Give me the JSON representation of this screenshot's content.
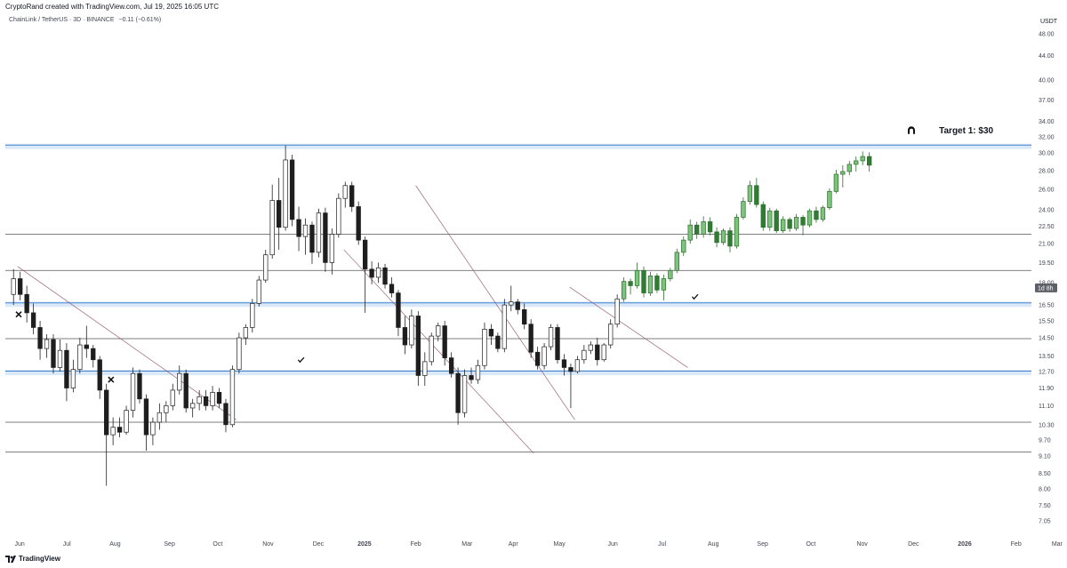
{
  "header": {
    "attribution": "CryptoRand created with TradingView.com, Jul 19, 2025 16:05 UTC",
    "symbol": "ChainLink / TetherUS · 3D · BINANCE",
    "change": "−0.11 (−0.61%)"
  },
  "footer": {
    "brand": "TradingView",
    "logo_icon": "tradingview-logo-icon"
  },
  "chart_data": {
    "type": "candlestick",
    "ylabel": "USDT",
    "yscale": "log",
    "ylim": [
      6.6,
      52
    ],
    "y_ticks": [
      "48.00",
      "44.00",
      "40.00",
      "37.00",
      "34.00",
      "32.00",
      "30.00",
      "28.00",
      "26.00",
      "24.00",
      "22.50",
      "21.00",
      "19.50",
      "18.00",
      "16.50",
      "15.50",
      "14.50",
      "13.50",
      "12.70",
      "11.90",
      "11.10",
      "10.30",
      "9.70",
      "9.10",
      "8.50",
      "8.00",
      "7.50",
      "7.05"
    ],
    "x_ticks": [
      "Jun",
      "Jul",
      "Aug",
      "Sep",
      "Oct",
      "Nov",
      "Dec",
      "2025",
      "Feb",
      "Mar",
      "Apr",
      "May",
      "Jun",
      "Jul",
      "Aug",
      "Sep",
      "Oct",
      "Nov",
      "Dec",
      "2026",
      "Feb",
      "Mar"
    ],
    "x_tick_pos": [
      0.014,
      0.06,
      0.107,
      0.16,
      0.207,
      0.256,
      0.305,
      0.35,
      0.4,
      0.45,
      0.495,
      0.54,
      0.592,
      0.64,
      0.69,
      0.738,
      0.785,
      0.835,
      0.885,
      0.935,
      0.985,
      1.025
    ],
    "price_label": "1d 8h",
    "last_price": 17.65,
    "horizontal_levels": [
      {
        "price": 30.8,
        "style": "blue-zone"
      },
      {
        "price": 16.55,
        "style": "blue-zone"
      },
      {
        "price": 12.65,
        "style": "blue-zone"
      },
      {
        "price": 21.8,
        "style": "line"
      },
      {
        "price": 18.9,
        "style": "line"
      },
      {
        "price": 14.45,
        "style": "line"
      },
      {
        "price": 10.4,
        "style": "line"
      },
      {
        "price": 9.25,
        "style": "line"
      }
    ],
    "trendlines": [
      {
        "x1": 0.012,
        "y1": 19.2,
        "x2": 0.225,
        "y2": 10.5
      },
      {
        "x1": 0.4,
        "y1": 26.4,
        "x2": 0.555,
        "y2": 10.5
      },
      {
        "x1": 0.33,
        "y1": 20.5,
        "x2": 0.515,
        "y2": 9.2
      },
      {
        "x1": 0.55,
        "y1": 17.7,
        "x2": 0.665,
        "y2": 12.9
      }
    ],
    "candles": [
      {
        "o": 17.2,
        "h": 19.0,
        "l": 16.5,
        "c": 18.3
      },
      {
        "o": 18.3,
        "h": 18.8,
        "l": 16.8,
        "c": 17.2
      },
      {
        "o": 17.2,
        "h": 17.8,
        "l": 15.4,
        "c": 16.0
      },
      {
        "o": 16.0,
        "h": 16.6,
        "l": 14.7,
        "c": 15.1
      },
      {
        "o": 15.1,
        "h": 15.5,
        "l": 13.3,
        "c": 13.9
      },
      {
        "o": 13.9,
        "h": 14.7,
        "l": 13.4,
        "c": 14.4
      },
      {
        "o": 14.4,
        "h": 14.7,
        "l": 12.6,
        "c": 12.9
      },
      {
        "o": 12.9,
        "h": 14.4,
        "l": 12.7,
        "c": 13.8
      },
      {
        "o": 13.8,
        "h": 14.2,
        "l": 11.3,
        "c": 11.9
      },
      {
        "o": 11.9,
        "h": 13.3,
        "l": 11.7,
        "c": 12.8
      },
      {
        "o": 12.8,
        "h": 14.5,
        "l": 12.6,
        "c": 14.1
      },
      {
        "o": 14.1,
        "h": 15.2,
        "l": 13.4,
        "c": 13.9
      },
      {
        "o": 13.9,
        "h": 14.1,
        "l": 12.9,
        "c": 13.3
      },
      {
        "o": 13.3,
        "h": 13.5,
        "l": 11.4,
        "c": 11.8
      },
      {
        "o": 11.8,
        "h": 12.1,
        "l": 8.1,
        "c": 9.9
      },
      {
        "o": 9.9,
        "h": 10.6,
        "l": 9.5,
        "c": 10.2
      },
      {
        "o": 10.2,
        "h": 10.6,
        "l": 9.8,
        "c": 10.0
      },
      {
        "o": 10.0,
        "h": 11.1,
        "l": 9.9,
        "c": 10.9
      },
      {
        "o": 10.9,
        "h": 12.9,
        "l": 10.6,
        "c": 12.6
      },
      {
        "o": 12.6,
        "h": 12.8,
        "l": 11.2,
        "c": 11.4
      },
      {
        "o": 11.4,
        "h": 11.6,
        "l": 9.3,
        "c": 9.9
      },
      {
        "o": 9.9,
        "h": 10.6,
        "l": 9.5,
        "c": 10.4
      },
      {
        "o": 10.4,
        "h": 11.2,
        "l": 10.1,
        "c": 10.8
      },
      {
        "o": 10.8,
        "h": 11.3,
        "l": 10.4,
        "c": 11.1
      },
      {
        "o": 11.1,
        "h": 12.1,
        "l": 10.9,
        "c": 11.8
      },
      {
        "o": 11.8,
        "h": 13.0,
        "l": 11.6,
        "c": 12.6
      },
      {
        "o": 12.6,
        "h": 12.8,
        "l": 10.8,
        "c": 11.0
      },
      {
        "o": 11.0,
        "h": 11.4,
        "l": 10.6,
        "c": 11.2
      },
      {
        "o": 11.2,
        "h": 11.8,
        "l": 10.9,
        "c": 11.5
      },
      {
        "o": 11.5,
        "h": 11.8,
        "l": 10.9,
        "c": 11.1
      },
      {
        "o": 11.1,
        "h": 12.0,
        "l": 10.9,
        "c": 11.7
      },
      {
        "o": 11.7,
        "h": 11.9,
        "l": 11.0,
        "c": 11.2
      },
      {
        "o": 11.2,
        "h": 11.4,
        "l": 10.0,
        "c": 10.3
      },
      {
        "o": 10.3,
        "h": 13.0,
        "l": 10.2,
        "c": 12.8
      },
      {
        "o": 12.8,
        "h": 14.8,
        "l": 12.6,
        "c": 14.5
      },
      {
        "o": 14.5,
        "h": 15.3,
        "l": 14.1,
        "c": 15.1
      },
      {
        "o": 15.1,
        "h": 16.9,
        "l": 14.8,
        "c": 16.6
      },
      {
        "o": 16.6,
        "h": 18.5,
        "l": 16.4,
        "c": 18.2
      },
      {
        "o": 18.2,
        "h": 20.5,
        "l": 18.0,
        "c": 20.1
      },
      {
        "o": 20.1,
        "h": 26.5,
        "l": 19.8,
        "c": 24.9
      },
      {
        "o": 24.9,
        "h": 27.2,
        "l": 20.5,
        "c": 22.4
      },
      {
        "o": 22.4,
        "h": 30.9,
        "l": 22.1,
        "c": 29.2
      },
      {
        "o": 29.2,
        "h": 29.8,
        "l": 22.5,
        "c": 23.1
      },
      {
        "o": 23.1,
        "h": 24.3,
        "l": 20.4,
        "c": 21.6
      },
      {
        "o": 21.6,
        "h": 23.2,
        "l": 20.1,
        "c": 22.6
      },
      {
        "o": 22.6,
        "h": 22.9,
        "l": 19.4,
        "c": 20.3
      },
      {
        "o": 20.3,
        "h": 24.1,
        "l": 19.9,
        "c": 23.7
      },
      {
        "o": 23.7,
        "h": 24.2,
        "l": 18.8,
        "c": 19.5
      },
      {
        "o": 19.5,
        "h": 22.3,
        "l": 18.6,
        "c": 21.8
      },
      {
        "o": 21.8,
        "h": 25.6,
        "l": 21.5,
        "c": 25.1
      },
      {
        "o": 25.1,
        "h": 26.8,
        "l": 24.2,
        "c": 26.4
      },
      {
        "o": 26.4,
        "h": 26.8,
        "l": 23.8,
        "c": 24.3
      },
      {
        "o": 24.3,
        "h": 24.8,
        "l": 20.9,
        "c": 21.3
      },
      {
        "o": 21.3,
        "h": 21.6,
        "l": 16.0,
        "c": 19.0
      },
      {
        "o": 19.0,
        "h": 19.6,
        "l": 17.9,
        "c": 18.4
      },
      {
        "o": 18.4,
        "h": 19.5,
        "l": 18.0,
        "c": 19.1
      },
      {
        "o": 19.1,
        "h": 19.4,
        "l": 17.6,
        "c": 17.9
      },
      {
        "o": 17.9,
        "h": 18.4,
        "l": 17.0,
        "c": 17.3
      },
      {
        "o": 17.3,
        "h": 17.5,
        "l": 14.6,
        "c": 15.1
      },
      {
        "o": 15.1,
        "h": 15.8,
        "l": 13.6,
        "c": 14.1
      },
      {
        "o": 14.1,
        "h": 16.2,
        "l": 13.9,
        "c": 15.8
      },
      {
        "o": 15.8,
        "h": 16.1,
        "l": 12.0,
        "c": 12.5
      },
      {
        "o": 12.5,
        "h": 13.7,
        "l": 12.0,
        "c": 13.2
      },
      {
        "o": 13.2,
        "h": 14.8,
        "l": 13.0,
        "c": 14.6
      },
      {
        "o": 14.6,
        "h": 15.4,
        "l": 14.3,
        "c": 15.2
      },
      {
        "o": 15.2,
        "h": 15.5,
        "l": 13.0,
        "c": 13.4
      },
      {
        "o": 13.4,
        "h": 13.7,
        "l": 12.4,
        "c": 12.6
      },
      {
        "o": 12.6,
        "h": 12.9,
        "l": 10.3,
        "c": 10.8
      },
      {
        "o": 10.8,
        "h": 12.8,
        "l": 10.6,
        "c": 12.5
      },
      {
        "o": 12.5,
        "h": 12.9,
        "l": 12.1,
        "c": 12.3
      },
      {
        "o": 12.3,
        "h": 13.3,
        "l": 12.1,
        "c": 13.0
      },
      {
        "o": 13.0,
        "h": 15.4,
        "l": 12.8,
        "c": 15.0
      },
      {
        "o": 15.0,
        "h": 15.3,
        "l": 14.1,
        "c": 14.6
      },
      {
        "o": 14.6,
        "h": 14.8,
        "l": 13.7,
        "c": 13.9
      },
      {
        "o": 13.9,
        "h": 16.9,
        "l": 13.7,
        "c": 16.5
      },
      {
        "o": 16.5,
        "h": 17.8,
        "l": 16.1,
        "c": 16.7
      },
      {
        "o": 16.7,
        "h": 16.9,
        "l": 15.9,
        "c": 16.2
      },
      {
        "o": 16.2,
        "h": 16.6,
        "l": 15.0,
        "c": 15.3
      },
      {
        "o": 15.3,
        "h": 15.6,
        "l": 13.4,
        "c": 13.7
      },
      {
        "o": 13.7,
        "h": 14.0,
        "l": 12.8,
        "c": 13.0
      },
      {
        "o": 13.0,
        "h": 14.2,
        "l": 12.8,
        "c": 14.0
      },
      {
        "o": 14.0,
        "h": 15.3,
        "l": 13.8,
        "c": 15.1
      },
      {
        "o": 15.1,
        "h": 15.3,
        "l": 13.1,
        "c": 13.3
      },
      {
        "o": 13.3,
        "h": 13.6,
        "l": 12.5,
        "c": 12.9
      },
      {
        "o": 12.9,
        "h": 13.1,
        "l": 11.0,
        "c": 12.7
      },
      {
        "o": 12.7,
        "h": 13.5,
        "l": 12.6,
        "c": 13.3
      },
      {
        "o": 13.3,
        "h": 14.1,
        "l": 13.1,
        "c": 13.8
      },
      {
        "o": 13.8,
        "h": 14.3,
        "l": 13.6,
        "c": 14.1
      },
      {
        "o": 14.1,
        "h": 14.5,
        "l": 13.0,
        "c": 13.3
      },
      {
        "o": 13.3,
        "h": 14.2,
        "l": 13.2,
        "c": 14.1
      },
      {
        "o": 14.1,
        "h": 15.6,
        "l": 13.9,
        "c": 15.3
      },
      {
        "o": 15.3,
        "h": 17.2,
        "l": 15.1,
        "c": 16.9
      },
      {
        "o": 16.9,
        "h": 18.4,
        "l": 16.7,
        "c": 18.1
      },
      {
        "o": 18.1,
        "h": 18.3,
        "l": 17.2,
        "c": 17.8
      },
      {
        "o": 17.8,
        "h": 19.5,
        "l": 17.6,
        "c": 18.9
      },
      {
        "o": 18.9,
        "h": 19.2,
        "l": 17.0,
        "c": 17.3
      },
      {
        "o": 17.3,
        "h": 18.8,
        "l": 17.1,
        "c": 18.5
      },
      {
        "o": 18.5,
        "h": 18.7,
        "l": 17.3,
        "c": 17.5
      },
      {
        "o": 17.5,
        "h": 18.6,
        "l": 16.8,
        "c": 18.3
      },
      {
        "o": 18.3,
        "h": 19.1,
        "l": 18.1,
        "c": 18.9
      },
      {
        "o": 18.9,
        "h": 20.6,
        "l": 18.7,
        "c": 20.3
      },
      {
        "o": 20.3,
        "h": 21.6,
        "l": 20.0,
        "c": 21.3
      },
      {
        "o": 21.3,
        "h": 23.1,
        "l": 21.0,
        "c": 22.6
      },
      {
        "o": 22.6,
        "h": 22.9,
        "l": 21.4,
        "c": 21.8
      },
      {
        "o": 21.8,
        "h": 23.4,
        "l": 21.5,
        "c": 22.9
      },
      {
        "o": 22.9,
        "h": 23.3,
        "l": 21.7,
        "c": 22.0
      },
      {
        "o": 22.0,
        "h": 22.4,
        "l": 20.7,
        "c": 21.1
      },
      {
        "o": 21.1,
        "h": 22.3,
        "l": 20.9,
        "c": 22.1
      },
      {
        "o": 22.1,
        "h": 22.4,
        "l": 20.3,
        "c": 20.8
      },
      {
        "o": 20.8,
        "h": 23.6,
        "l": 20.6,
        "c": 23.3
      },
      {
        "o": 23.3,
        "h": 25.2,
        "l": 23.1,
        "c": 24.8
      },
      {
        "o": 24.8,
        "h": 26.9,
        "l": 24.5,
        "c": 26.4
      },
      {
        "o": 26.4,
        "h": 27.2,
        "l": 24.2,
        "c": 24.5
      },
      {
        "o": 24.5,
        "h": 24.8,
        "l": 22.1,
        "c": 22.4
      },
      {
        "o": 22.4,
        "h": 24.2,
        "l": 22.1,
        "c": 23.9
      },
      {
        "o": 23.9,
        "h": 24.1,
        "l": 21.9,
        "c": 22.1
      },
      {
        "o": 22.1,
        "h": 23.4,
        "l": 21.9,
        "c": 23.1
      },
      {
        "o": 23.1,
        "h": 23.3,
        "l": 22.0,
        "c": 22.3
      },
      {
        "o": 22.3,
        "h": 23.6,
        "l": 22.1,
        "c": 23.3
      },
      {
        "o": 23.3,
        "h": 23.5,
        "l": 21.7,
        "c": 22.6
      },
      {
        "o": 22.6,
        "h": 24.1,
        "l": 22.4,
        "c": 23.9
      },
      {
        "o": 23.9,
        "h": 24.3,
        "l": 22.8,
        "c": 23.1
      },
      {
        "o": 23.1,
        "h": 24.4,
        "l": 22.9,
        "c": 24.2
      },
      {
        "o": 24.2,
        "h": 26.1,
        "l": 24.0,
        "c": 25.8
      },
      {
        "o": 25.8,
        "h": 28.1,
        "l": 25.6,
        "c": 27.6
      },
      {
        "o": 27.6,
        "h": 28.6,
        "l": 26.2,
        "c": 27.9
      },
      {
        "o": 27.9,
        "h": 29.1,
        "l": 27.5,
        "c": 28.7
      },
      {
        "o": 28.7,
        "h": 29.6,
        "l": 27.9,
        "c": 29.1
      },
      {
        "o": 29.1,
        "h": 30.2,
        "l": 28.6,
        "c": 29.6
      },
      {
        "o": 29.6,
        "h": 30.1,
        "l": 27.9,
        "c": 28.6
      }
    ],
    "projection_start_index": 92,
    "annotations": [
      {
        "type": "cross",
        "x": 0.013,
        "price": 15.9
      },
      {
        "type": "cross",
        "x": 0.103,
        "price": 12.3
      },
      {
        "type": "check",
        "x": 0.288,
        "price": 13.3
      },
      {
        "type": "check",
        "x": 0.672,
        "price": 17.05
      },
      {
        "type": "target-icon",
        "x": 0.883,
        "price": 32.8
      },
      {
        "type": "target-label",
        "text": "Target 1: $30",
        "x": 0.91,
        "price": 32.8
      }
    ]
  }
}
